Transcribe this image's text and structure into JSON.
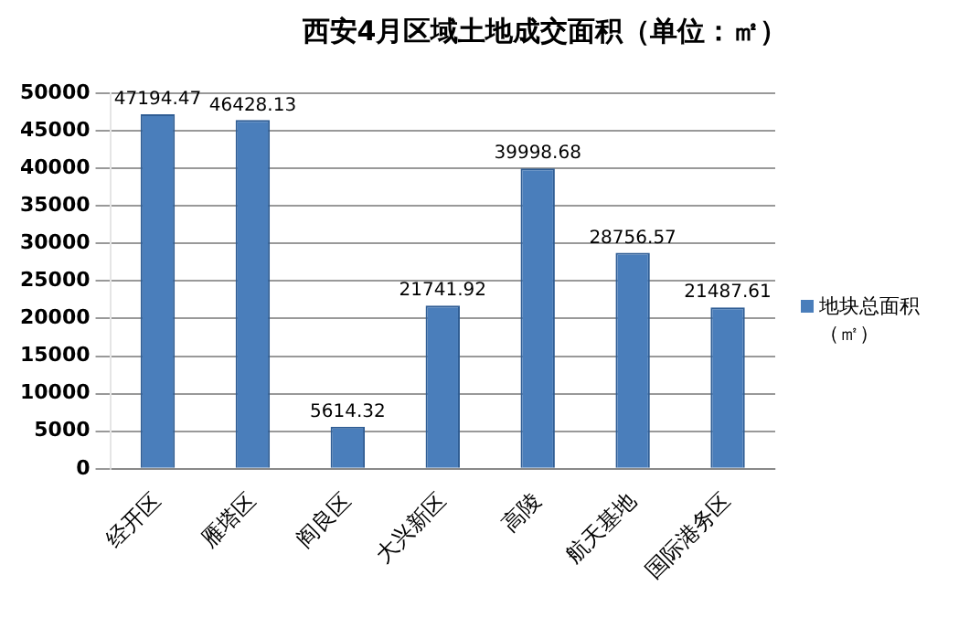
{
  "chart_data": {
    "type": "bar",
    "title": "西安4月区域土地成交面积（单位：㎡）",
    "categories": [
      "经开区",
      "雁塔区",
      "阎良区",
      "大兴新区",
      "高陵",
      "航天基地",
      "国际港务区"
    ],
    "series": [
      {
        "name": "地块总面积（㎡）",
        "color": "#4a7ebb",
        "values": [
          47194.47,
          46428.13,
          5614.32,
          21741.92,
          39998.68,
          28756.57,
          21487.61
        ]
      }
    ],
    "ylim": [
      0,
      50000
    ],
    "yticks": [
      0,
      5000,
      10000,
      15000,
      20000,
      25000,
      30000,
      35000,
      40000,
      45000,
      50000
    ],
    "grid": "y",
    "legend": "right",
    "data_labels": true
  }
}
